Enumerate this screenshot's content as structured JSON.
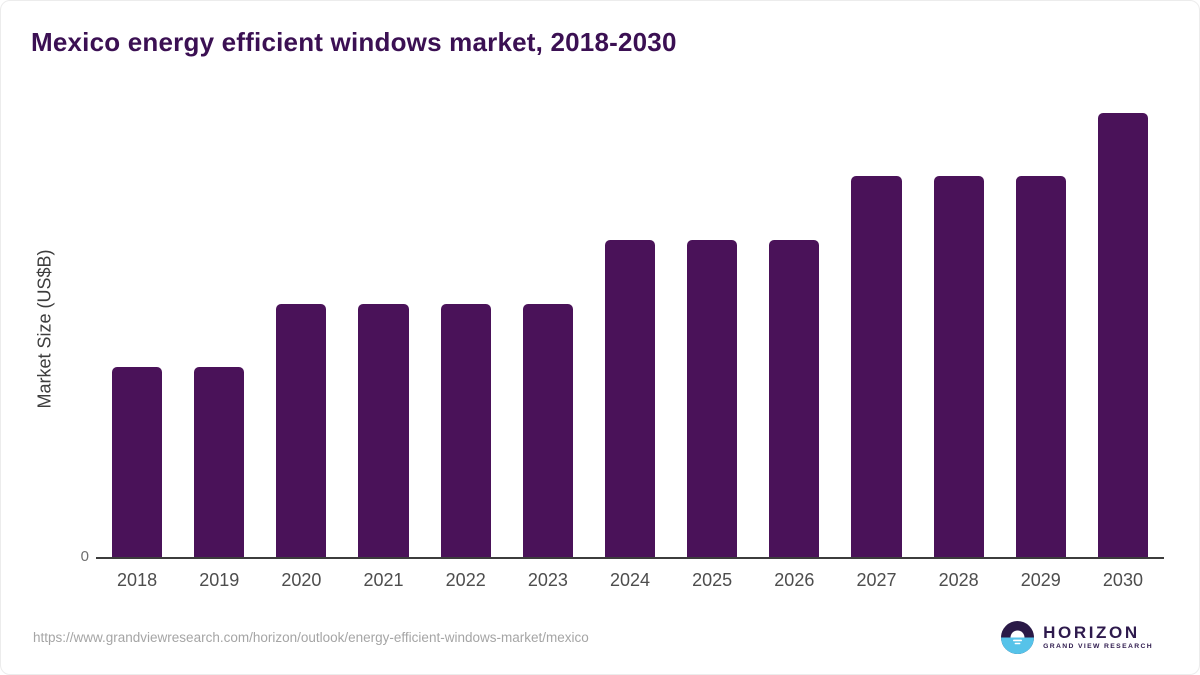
{
  "title": "Mexico energy efficient windows market, 2018-2030",
  "chart_data": {
    "type": "bar",
    "title": "Mexico energy efficient windows market, 2018-2030",
    "categories": [
      "2018",
      "2019",
      "2020",
      "2021",
      "2022",
      "2023",
      "2024",
      "2025",
      "2026",
      "2027",
      "2028",
      "2029",
      "2030"
    ],
    "values": [
      1.5,
      1.5,
      2.0,
      2.0,
      2.0,
      2.0,
      2.5,
      2.5,
      2.5,
      3.0,
      3.0,
      3.0,
      3.5
    ],
    "xlabel": "",
    "ylabel": "Market Size (US$B)",
    "ylim": [
      0,
      3.6
    ],
    "y_tick_labels": [
      "0"
    ],
    "grid": false,
    "legend": false,
    "bar_color": "#4A1259",
    "bar_corner_radius": 5
  },
  "axis": {
    "zero_label": "0"
  },
  "footer": {
    "source_url": "https://www.grandviewresearch.com/horizon/outlook/energy-efficient-windows-market/mexico",
    "logo_title": "HORIZON",
    "logo_subtitle": "GRAND VIEW RESEARCH"
  },
  "colors": {
    "bar": "#4A1259",
    "title_text": "#3B1053",
    "axis_line": "#3C3C3C",
    "tick_text": "#4D4D4D",
    "zero_text": "#6F6F6F",
    "url_text": "#A5A5A5",
    "logo_dark": "#2A1A47",
    "logo_blue": "#56C3E9"
  },
  "icons": {
    "logo_mark": "horizon-sun-circle-icon"
  }
}
